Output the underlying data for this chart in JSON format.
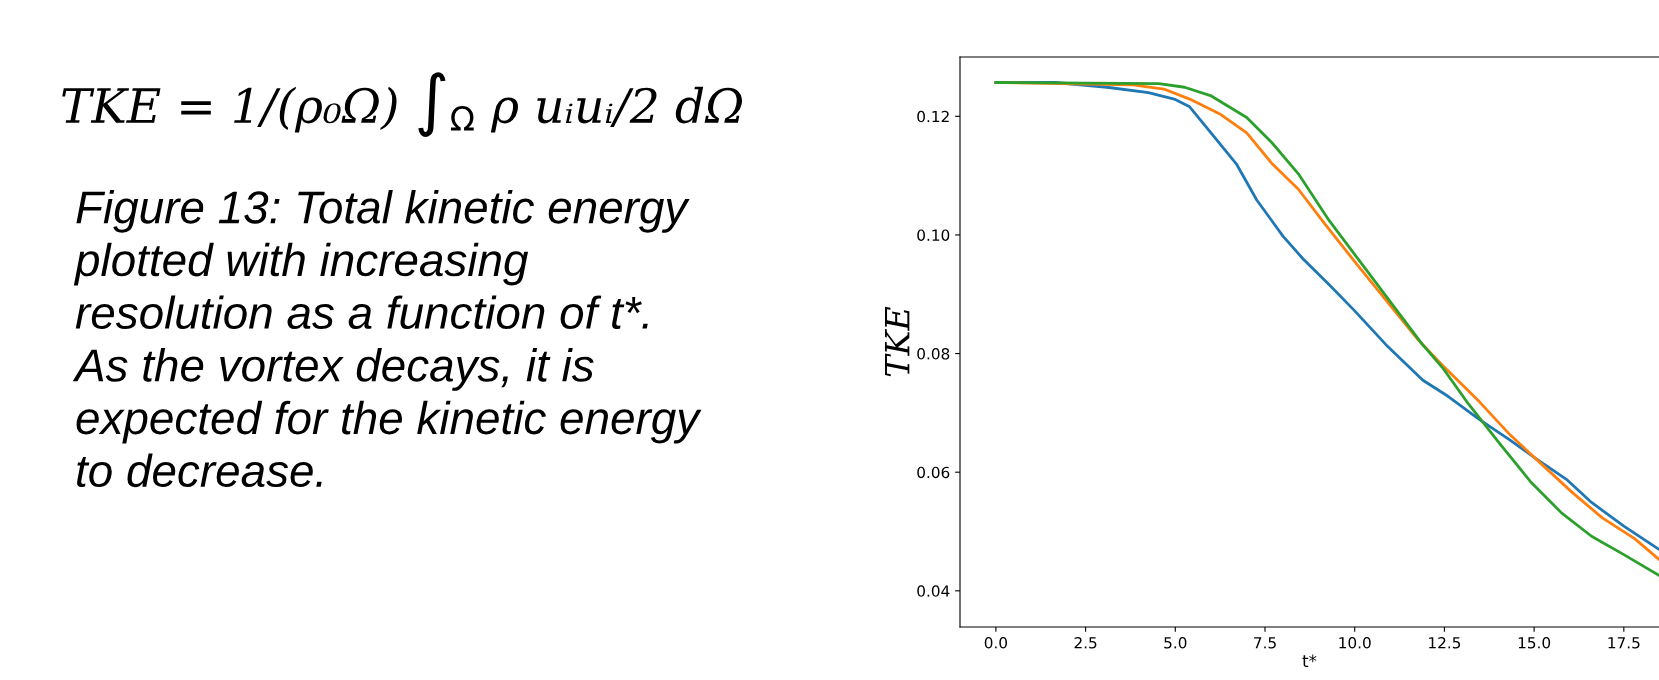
{
  "chart_data": {
    "type": "line",
    "xlabel": "t*",
    "ylabel": "TKE",
    "annotations": [
      "TKE = 1/(ρ₀Ω) ∫$_{Ω}$ ρ uᵢuᵢ/2 dΩ",
      "Figure 13: Total kinetic energy\nplotted with increasing\nresolution as a function of t*.\nAs the vortex decays, it is\nexpected for the kinetic energy\nto decrease."
    ],
    "series": [
      {
        "color": "#1f77b4",
        "x": [
          0,
          1.66,
          3.1,
          4.25,
          4.97,
          5.4,
          6.12,
          6.7,
          7.27,
          8.0,
          8.57,
          9.29,
          10.0,
          10.87,
          11.9,
          12.6,
          13.47,
          14.33,
          15.05,
          15.9,
          16.6,
          17.5,
          18.48
        ],
        "values": [
          0.1257,
          0.1257,
          0.1249,
          0.124,
          0.1229,
          0.1216,
          0.1163,
          0.112,
          0.1059,
          0.0998,
          0.0959,
          0.0916,
          0.0872,
          0.0815,
          0.0755,
          0.0728,
          0.0689,
          0.0654,
          0.0623,
          0.0588,
          0.0549,
          0.0509,
          0.047
        ]
      },
      {
        "color": "#ff7f0e",
        "x": [
          0,
          3.82,
          4.68,
          5.4,
          6.27,
          6.99,
          7.7,
          8.43,
          9.15,
          10.0,
          10.87,
          11.74,
          12.45,
          13.47,
          14.33,
          15.2,
          16.06,
          16.9,
          17.8,
          18.48
        ],
        "values": [
          0.1257,
          0.1253,
          0.1246,
          0.1229,
          0.1203,
          0.1172,
          0.112,
          0.1077,
          0.102,
          0.0955,
          0.089,
          0.0825,
          0.078,
          0.0719,
          0.0663,
          0.0614,
          0.0566,
          0.0523,
          0.0488,
          0.0453
        ]
      },
      {
        "color": "#2ca02c",
        "x": [
          0,
          4.54,
          5.26,
          5.98,
          6.99,
          7.7,
          8.43,
          9.29,
          10.15,
          11.02,
          11.88,
          12.45,
          13.17,
          14.03,
          14.9,
          15.77,
          16.6,
          17.5,
          18.48
        ],
        "values": [
          0.1257,
          0.1255,
          0.1249,
          0.1235,
          0.1198,
          0.1155,
          0.1103,
          0.1024,
          0.0955,
          0.0885,
          0.0816,
          0.0776,
          0.0715,
          0.0649,
          0.0584,
          0.0531,
          0.0492,
          0.0461,
          0.0426
        ]
      }
    ],
    "xlim": [
      -1.0,
      18.48
    ],
    "ylim": [
      0.0339,
      0.13
    ],
    "xticks": [
      {
        "value": 0,
        "label": "0.0"
      },
      2.5,
      {
        "value": 5,
        "label": "5.0"
      },
      7.5,
      {
        "value": 10,
        "label": "10.0"
      },
      12.5,
      {
        "value": 15,
        "label": "15.0"
      },
      17.5
    ],
    "yticks": [
      0.04,
      0.06,
      0.08,
      {
        "value": 0.1,
        "label": "0.10"
      },
      0.12
    ],
    "grid": false,
    "legend": false
  }
}
